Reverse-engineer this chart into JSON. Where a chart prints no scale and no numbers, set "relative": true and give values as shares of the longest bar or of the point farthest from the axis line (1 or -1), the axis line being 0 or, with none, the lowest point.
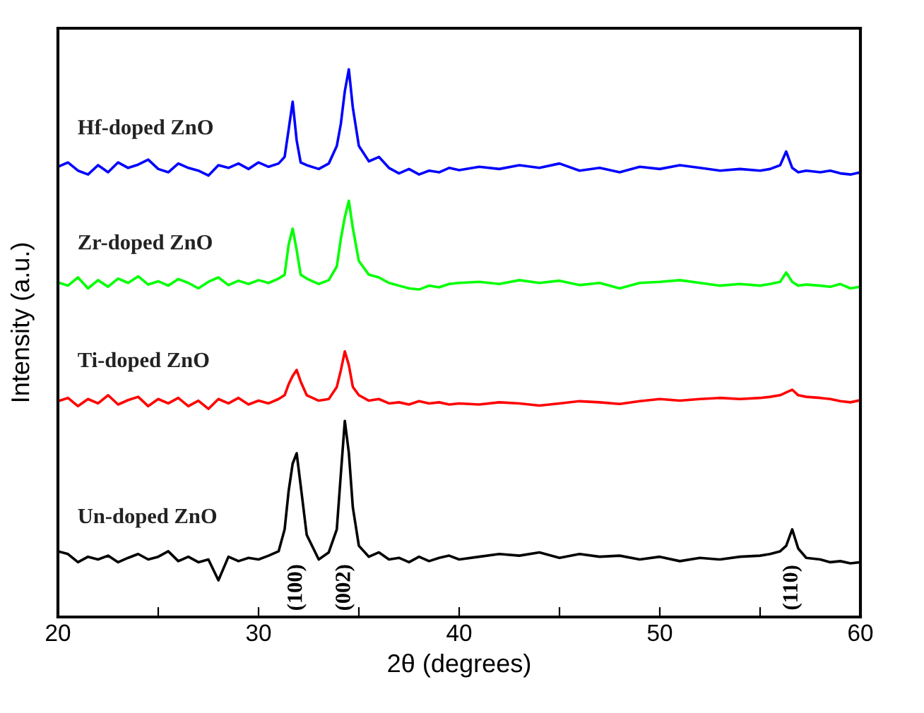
{
  "chart_data": {
    "type": "line",
    "relative": true,
    "xlabel": "2θ (degrees)",
    "ylabel": "Intensity (a.u.)",
    "xlim": [
      20,
      60
    ],
    "xticks": [
      20,
      {
        "value": 25,
        "label": null
      },
      30,
      {
        "value": 35,
        "label": null
      },
      40,
      {
        "value": 45,
        "label": null
      },
      50,
      {
        "value": 55,
        "label": null
      },
      60
    ],
    "x": [
      20,
      20.5,
      21,
      21.5,
      22,
      22.5,
      23,
      23.5,
      24,
      24.5,
      25,
      25.5,
      26,
      26.5,
      27,
      27.5,
      28,
      28.5,
      29,
      29.5,
      30,
      30.5,
      31,
      31.3,
      31.5,
      31.7,
      31.9,
      32.1,
      32.4,
      33,
      33.5,
      33.9,
      34.1,
      34.3,
      34.5,
      34.7,
      35,
      35.5,
      36,
      36.5,
      37,
      37.5,
      38,
      38.5,
      39,
      39.5,
      40,
      41,
      42,
      43,
      44,
      45,
      46,
      47,
      48,
      49,
      50,
      51,
      52,
      53,
      54,
      55,
      55.5,
      56,
      56.3,
      56.6,
      56.9,
      57.3,
      58,
      58.5,
      59,
      59.5,
      60
    ],
    "series": [
      {
        "name": "Hf-doped ZnO",
        "color": "#0000ff",
        "values": [
          0.822,
          0.83,
          0.815,
          0.808,
          0.825,
          0.812,
          0.83,
          0.82,
          0.826,
          0.835,
          0.818,
          0.812,
          0.828,
          0.82,
          0.815,
          0.806,
          0.825,
          0.82,
          0.828,
          0.818,
          0.83,
          0.822,
          0.828,
          0.84,
          0.89,
          0.941,
          0.87,
          0.83,
          0.825,
          0.818,
          0.828,
          0.86,
          0.9,
          0.96,
          1.0,
          0.93,
          0.86,
          0.832,
          0.84,
          0.82,
          0.81,
          0.818,
          0.808,
          0.815,
          0.812,
          0.82,
          0.816,
          0.822,
          0.818,
          0.825,
          0.82,
          0.828,
          0.815,
          0.82,
          0.812,
          0.822,
          0.818,
          0.825,
          0.82,
          0.815,
          0.818,
          0.815,
          0.818,
          0.825,
          0.85,
          0.82,
          0.812,
          0.815,
          0.812,
          0.815,
          0.81,
          0.808,
          0.812
        ]
      },
      {
        "name": "Zr-doped ZnO",
        "color": "#00ff00",
        "values": [
          0.611,
          0.605,
          0.62,
          0.6,
          0.615,
          0.603,
          0.618,
          0.61,
          0.622,
          0.607,
          0.613,
          0.605,
          0.617,
          0.61,
          0.6,
          0.612,
          0.62,
          0.606,
          0.614,
          0.608,
          0.615,
          0.61,
          0.618,
          0.625,
          0.68,
          0.709,
          0.67,
          0.625,
          0.618,
          0.608,
          0.615,
          0.64,
          0.69,
          0.73,
          0.76,
          0.71,
          0.65,
          0.625,
          0.62,
          0.61,
          0.605,
          0.6,
          0.598,
          0.605,
          0.602,
          0.608,
          0.61,
          0.612,
          0.608,
          0.615,
          0.61,
          0.614,
          0.606,
          0.61,
          0.6,
          0.61,
          0.612,
          0.615,
          0.61,
          0.605,
          0.608,
          0.605,
          0.608,
          0.612,
          0.629,
          0.612,
          0.605,
          0.607,
          0.605,
          0.603,
          0.608,
          0.6,
          0.603
        ]
      },
      {
        "name": "Ti-doped ZnO",
        "color": "#ff0000",
        "values": [
          0.394,
          0.4,
          0.385,
          0.398,
          0.39,
          0.405,
          0.388,
          0.396,
          0.402,
          0.385,
          0.398,
          0.39,
          0.4,
          0.385,
          0.395,
          0.38,
          0.398,
          0.39,
          0.4,
          0.388,
          0.395,
          0.39,
          0.398,
          0.405,
          0.425,
          0.44,
          0.451,
          0.43,
          0.405,
          0.395,
          0.398,
          0.42,
          0.45,
          0.485,
          0.46,
          0.42,
          0.405,
          0.395,
          0.398,
          0.39,
          0.392,
          0.388,
          0.394,
          0.39,
          0.392,
          0.388,
          0.39,
          0.388,
          0.392,
          0.39,
          0.386,
          0.39,
          0.394,
          0.392,
          0.389,
          0.394,
          0.398,
          0.395,
          0.398,
          0.4,
          0.398,
          0.4,
          0.402,
          0.405,
          0.41,
          0.415,
          0.405,
          0.402,
          0.4,
          0.398,
          0.394,
          0.392,
          0.396
        ]
      },
      {
        "name": "Un-doped ZnO",
        "color": "#000000",
        "values": [
          0.12,
          0.115,
          0.1,
          0.11,
          0.105,
          0.112,
          0.1,
          0.108,
          0.115,
          0.105,
          0.11,
          0.12,
          0.102,
          0.11,
          0.1,
          0.105,
          0.067,
          0.11,
          0.102,
          0.108,
          0.105,
          0.112,
          0.12,
          0.16,
          0.23,
          0.28,
          0.299,
          0.24,
          0.15,
          0.105,
          0.118,
          0.16,
          0.26,
          0.358,
          0.3,
          0.2,
          0.13,
          0.11,
          0.118,
          0.105,
          0.108,
          0.1,
          0.11,
          0.102,
          0.108,
          0.112,
          0.105,
          0.11,
          0.115,
          0.112,
          0.118,
          0.108,
          0.115,
          0.11,
          0.112,
          0.105,
          0.11,
          0.102,
          0.108,
          0.105,
          0.11,
          0.112,
          0.115,
          0.12,
          0.13,
          0.16,
          0.125,
          0.108,
          0.105,
          0.1,
          0.102,
          0.098,
          0.1
        ]
      }
    ],
    "annotations": [
      "(100)",
      "(002)",
      "(110)"
    ]
  }
}
